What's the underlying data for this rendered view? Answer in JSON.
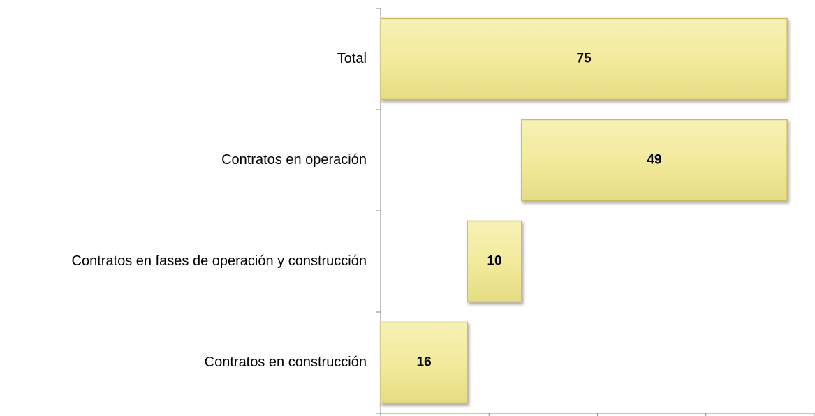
{
  "chart_data": {
    "type": "waterfall",
    "categories": [
      "Contratos en construcción",
      "Contratos en fases de operación y construcción",
      "Contratos en operación",
      "Total"
    ],
    "values": [
      16,
      10,
      49,
      75
    ],
    "color": "#f2ea9c",
    "xlim": [
      0,
      80
    ],
    "xticks": [
      0,
      20,
      40,
      60,
      80
    ]
  }
}
